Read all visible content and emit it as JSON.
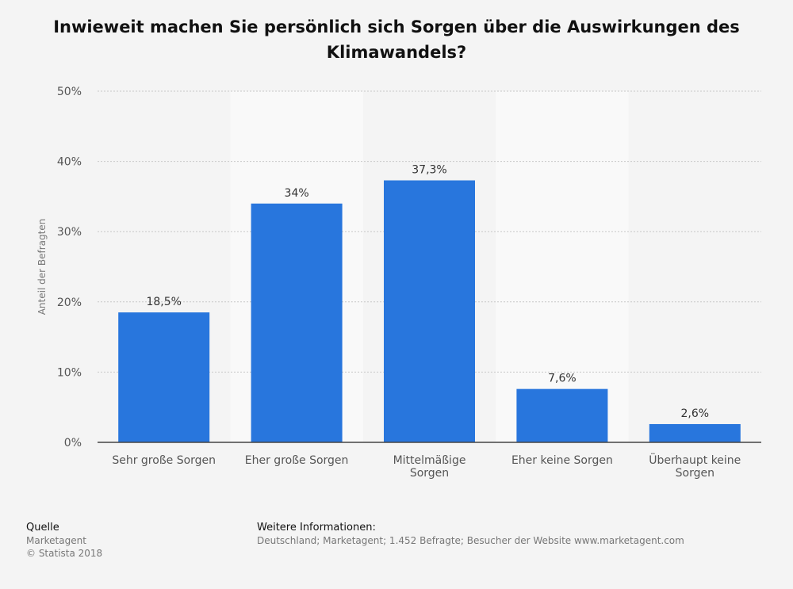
{
  "chart_data": {
    "type": "bar",
    "title": "Inwieweit machen Sie persönlich sich Sorgen über die Auswirkungen des Klimawandels?",
    "categories": [
      "Sehr große Sorgen",
      "Eher große Sorgen",
      "Mittelmäßige Sorgen",
      "Eher keine Sorgen",
      "Überhaupt keine Sorgen"
    ],
    "category_lines": [
      [
        "Sehr große Sorgen"
      ],
      [
        "Eher große Sorgen"
      ],
      [
        "Mittelmäßige",
        "Sorgen"
      ],
      [
        "Eher keine Sorgen"
      ],
      [
        "Überhaupt keine",
        "Sorgen"
      ]
    ],
    "values": [
      18.5,
      34,
      37.3,
      7.6,
      2.6
    ],
    "value_labels": [
      "18,5%",
      "34%",
      "37,3%",
      "7,6%",
      "2,6%"
    ],
    "ylabel": "Anteil der Befragten",
    "xlabel": "",
    "ylim": [
      0,
      50
    ],
    "yticks": [
      0,
      10,
      20,
      30,
      40,
      50
    ],
    "ytick_labels": [
      "0%",
      "10%",
      "20%",
      "30%",
      "40%",
      "50%"
    ],
    "grid": true,
    "bar_color": "#2876dd"
  },
  "footer": {
    "source_heading": "Quelle",
    "source_name": "Marketagent",
    "copyright": "© Statista 2018",
    "info_heading": "Weitere Informationen:",
    "info_text": "Deutschland; Marketagent; 1.452 Befragte; Besucher der Website www.marketagent.com"
  }
}
